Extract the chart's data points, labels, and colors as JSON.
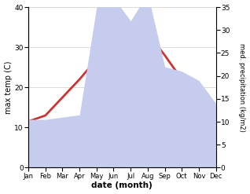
{
  "months": [
    "Jan",
    "Feb",
    "Mar",
    "Apr",
    "May",
    "Jun",
    "Jul",
    "Aug",
    "Sep",
    "Oct",
    "Nov",
    "Dec"
  ],
  "temp": [
    11.5,
    13.0,
    17.5,
    22.0,
    27.0,
    30.5,
    33.5,
    33.5,
    28.0,
    22.0,
    16.0,
    12.0
  ],
  "precip": [
    10.5,
    10.5,
    11.0,
    11.5,
    35.0,
    37.0,
    32.0,
    38.0,
    22.0,
    21.0,
    19.0,
    14.0
  ],
  "temp_ylim": [
    0,
    40
  ],
  "precip_ylim": [
    0,
    35
  ],
  "temp_color": "#cc3333",
  "precip_fill_color": "#c5ccee",
  "precip_fill_alpha": 1.0,
  "xlabel": "date (month)",
  "ylabel_left": "max temp (C)",
  "ylabel_right": "med. precipitation (kg/m2)",
  "temp_yticks": [
    0,
    10,
    20,
    30,
    40
  ],
  "precip_yticks": [
    0,
    5,
    10,
    15,
    20,
    25,
    30,
    35
  ],
  "bg_color": "#ffffff",
  "line_width": 2.0,
  "grid_color": "#cccccc"
}
